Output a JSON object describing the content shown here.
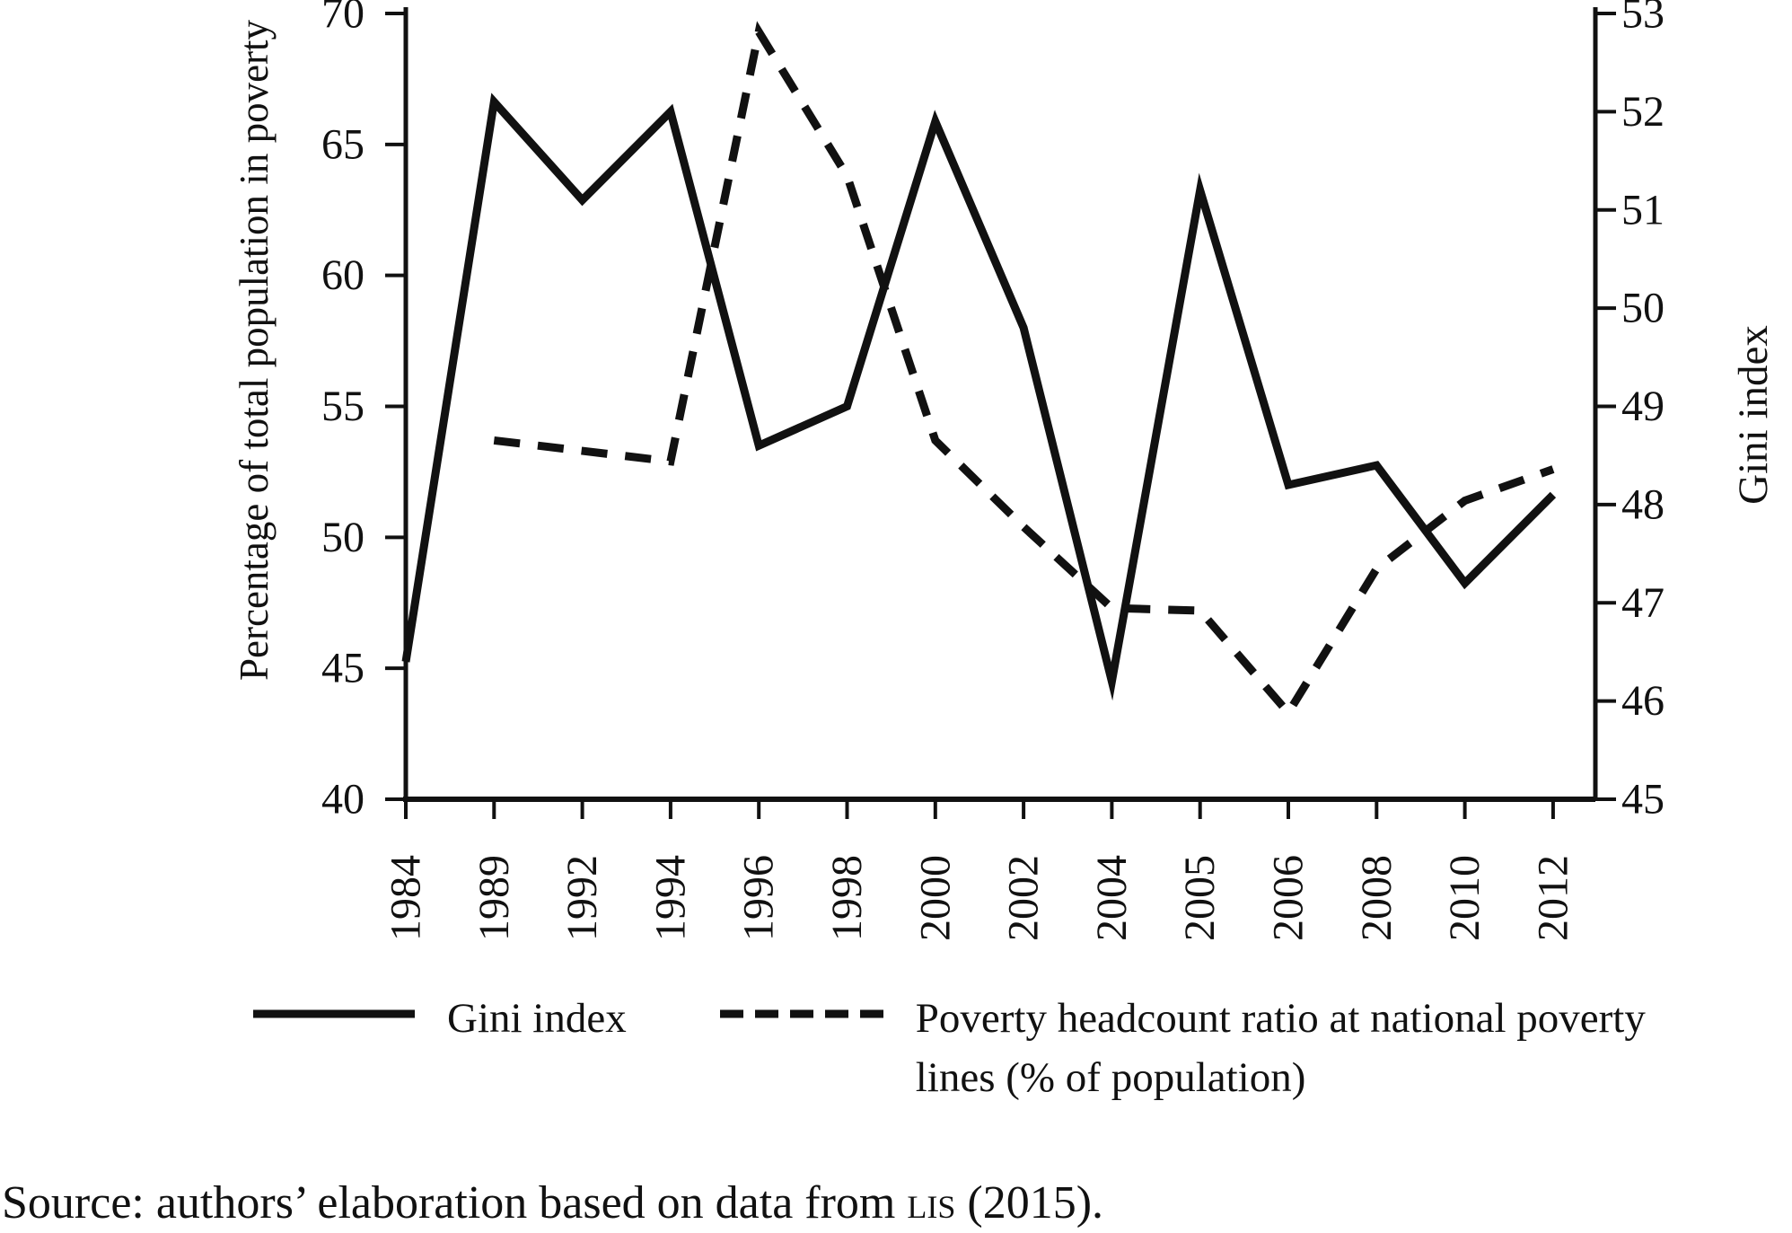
{
  "figure": {
    "legend": {
      "items": [
        {
          "id": "gini",
          "line_style": "solid",
          "label_lines": [
            "Gini index"
          ]
        },
        {
          "id": "poverty",
          "line_style": "dashed",
          "label_lines": [
            "Poverty headcount ratio at national poverty",
            "lines (% of population)"
          ]
        }
      ]
    },
    "source_note": {
      "prefix": "Source: authors’ elaboration based on data from ",
      "acronym": "lis",
      "suffix": " (2015)."
    }
  },
  "chart_data": {
    "type": "line",
    "title": "",
    "categories": [
      "1984",
      "1989",
      "1992",
      "1994",
      "1996",
      "1998",
      "2000",
      "2002",
      "2004",
      "2005",
      "2006",
      "2008",
      "2010",
      "2012"
    ],
    "series": [
      {
        "name": "Gini index",
        "axis": "right",
        "style": "solid",
        "values": [
          46.4,
          52.1,
          51.1,
          52.0,
          48.6,
          49.0,
          51.9,
          49.8,
          46.2,
          51.2,
          48.2,
          48.4,
          47.2,
          48.1
        ]
      },
      {
        "name": "Poverty headcount ratio at national poverty lines (% of population)",
        "axis": "left",
        "style": "dashed",
        "values": [
          null,
          53.7,
          53.3,
          52.9,
          69.3,
          63.8,
          53.7,
          50.4,
          47.3,
          47.2,
          43.3,
          48.8,
          51.4,
          52.6
        ]
      }
    ],
    "xlabel": "",
    "ylabel_left": "Percentage of total population in poverty",
    "ylabel_right": "Gini index",
    "ylim_left": [
      40,
      70
    ],
    "ylim_right": [
      45,
      53
    ],
    "yticks_left": [
      40,
      45,
      50,
      55,
      60,
      65,
      70
    ],
    "yticks_right": [
      45,
      46,
      47,
      48,
      49,
      50,
      51,
      52,
      53
    ],
    "grid": false,
    "legend_position": "bottom",
    "line_color": "#111111",
    "background_color": "#ffffff"
  }
}
